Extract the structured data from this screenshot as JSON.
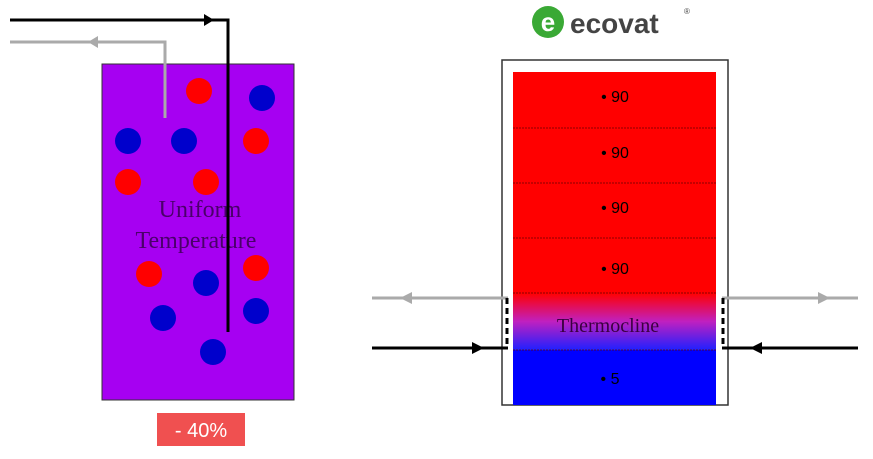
{
  "left_tank": {
    "label_lines": [
      "Uniform",
      "Temperature"
    ],
    "badge": "- 40%"
  },
  "logo": {
    "text": "ecovat",
    "mark": "®"
  },
  "right_tank": {
    "layers": [
      "• 90",
      "• 90",
      "• 90",
      "• 90",
      "Thermocline",
      "• 5"
    ]
  }
}
